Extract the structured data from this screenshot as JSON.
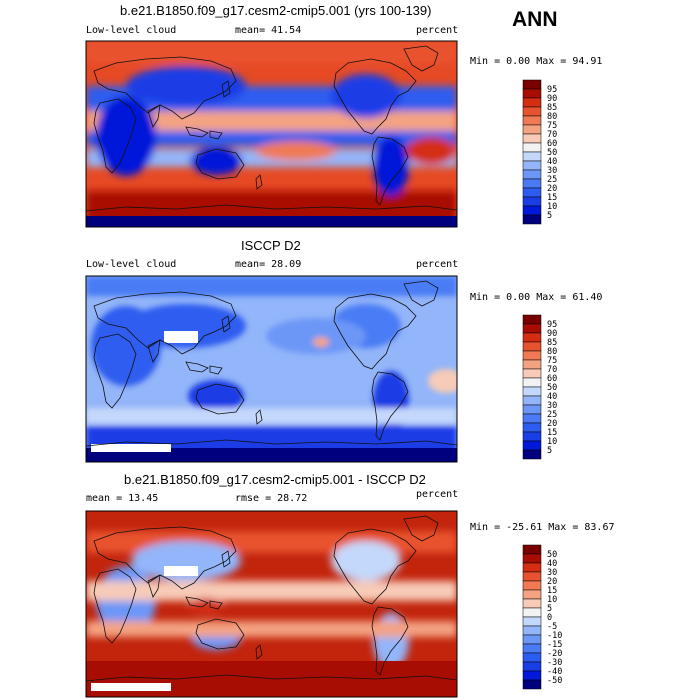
{
  "season": "ANN",
  "panels": [
    {
      "title": "b.e21.B1850.f09_g17.cesm2-cmip5.001 (yrs 100-139)",
      "left_label": "Low-level cloud",
      "center_label": "mean=  41.54",
      "units": "percent",
      "stats": "Min =   0.00 Max =  94.91"
    },
    {
      "title": "ISCCP D2",
      "left_label": "Low-level cloud",
      "center_label": "mean=  28.09",
      "units": "percent",
      "stats": "Min =   0.00 Max =  61.40"
    },
    {
      "title": "b.e21.B1850.f09_g17.cesm2-cmip5.001 - ISCCP D2",
      "left_label": "mean =  13.45",
      "center_label": "rmse =  28.72",
      "units": "percent",
      "stats": "Min = -25.61 Max =  83.67"
    }
  ],
  "chart_data": [
    {
      "type": "heatmap",
      "title": "b.e21.B1850.f09_g17.cesm2-cmip5.001 (yrs 100-139)",
      "variable": "Low-level cloud",
      "units": "percent",
      "mean": 41.54,
      "min": 0.0,
      "max": 94.91,
      "colorbar": {
        "levels": [
          5,
          10,
          15,
          20,
          25,
          30,
          40,
          50,
          60,
          70,
          75,
          80,
          85,
          90,
          95
        ],
        "colors": [
          "#00007f",
          "#0018d9",
          "#1a3ee6",
          "#2d5df0",
          "#4a7bf5",
          "#6c97f7",
          "#93b5f9",
          "#c4d8fb",
          "#f2f2f2",
          "#f7cbb8",
          "#f4a382",
          "#f07a55",
          "#e8532f",
          "#d42d12",
          "#a80d04",
          "#7a0000"
        ]
      }
    },
    {
      "type": "heatmap",
      "title": "ISCCP D2",
      "variable": "Low-level cloud",
      "units": "percent",
      "mean": 28.09,
      "min": 0.0,
      "max": 61.4,
      "colorbar": {
        "levels": [
          5,
          10,
          15,
          20,
          25,
          30,
          40,
          50,
          60,
          70,
          75,
          80,
          85,
          90,
          95
        ],
        "colors": [
          "#00007f",
          "#0018d9",
          "#1a3ee6",
          "#2d5df0",
          "#4a7bf5",
          "#6c97f7",
          "#93b5f9",
          "#c4d8fb",
          "#f2f2f2",
          "#f7cbb8",
          "#f4a382",
          "#f07a55",
          "#e8532f",
          "#d42d12",
          "#a80d04",
          "#7a0000"
        ]
      }
    },
    {
      "type": "heatmap",
      "title": "b.e21.B1850.f09_g17.cesm2-cmip5.001 - ISCCP D2",
      "units": "percent",
      "mean": 13.45,
      "rmse": 28.72,
      "min": -25.61,
      "max": 83.67,
      "colorbar": {
        "levels": [
          -50,
          -40,
          -30,
          -20,
          -15,
          -10,
          -5,
          0,
          5,
          10,
          15,
          20,
          30,
          40,
          50
        ],
        "colors": [
          "#00007f",
          "#0018d9",
          "#1a3ee6",
          "#2d5df0",
          "#4a7bf5",
          "#6c97f7",
          "#93b5f9",
          "#c4d8fb",
          "#f2f2f2",
          "#f7cbb8",
          "#f4a382",
          "#f07a55",
          "#e8532f",
          "#d42d12",
          "#a80d04",
          "#7a0000"
        ]
      }
    }
  ]
}
